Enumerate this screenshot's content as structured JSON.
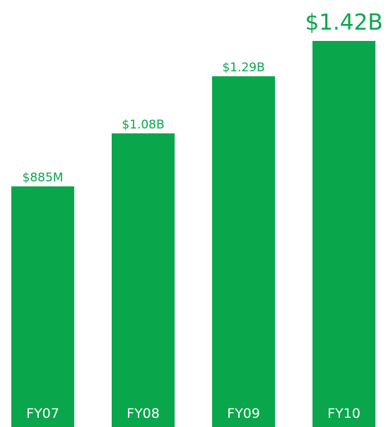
{
  "chart_data": {
    "type": "bar",
    "categories": [
      "FY07",
      "FY08",
      "FY09",
      "FY10"
    ],
    "values": [
      885000000,
      1080000000,
      1290000000,
      1420000000
    ],
    "value_labels": [
      "$885M",
      "$1.08B",
      "$1.29B",
      "$1.42B"
    ],
    "color": "#0aa64b"
  }
}
